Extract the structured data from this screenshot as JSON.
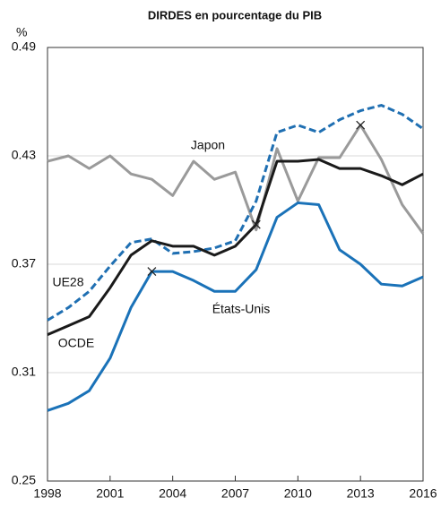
{
  "chart_data": {
    "type": "line",
    "title": "DIRDES en pourcentage du PIB",
    "y_unit": "%",
    "x": [
      1998,
      1999,
      2000,
      2001,
      2002,
      2003,
      2004,
      2005,
      2006,
      2007,
      2008,
      2009,
      2010,
      2011,
      2012,
      2013,
      2014,
      2015,
      2016
    ],
    "xlim": [
      1998,
      2016
    ],
    "xticks": [
      1998,
      2001,
      2004,
      2007,
      2010,
      2013,
      2016
    ],
    "ylim": [
      0.25,
      0.49
    ],
    "yticks": [
      0.25,
      0.31,
      0.37,
      0.43,
      0.49
    ],
    "grid": true,
    "series": [
      {
        "name": "Japon",
        "color": "#9a9a9a",
        "dashed": false,
        "break_at": 2013,
        "values": [
          0.427,
          0.43,
          0.423,
          0.43,
          0.42,
          0.417,
          0.408,
          0.427,
          0.417,
          0.421,
          0.389,
          0.434,
          0.405,
          0.429,
          0.429,
          0.447,
          0.428,
          0.403,
          0.387
        ]
      },
      {
        "name": "UE28",
        "color": "#1f6fb2",
        "dashed": true,
        "values": [
          0.339,
          0.346,
          0.355,
          0.369,
          0.382,
          0.384,
          0.376,
          0.377,
          0.379,
          0.383,
          0.405,
          0.443,
          0.447,
          0.443,
          0.45,
          0.455,
          0.458,
          0.453,
          0.445
        ]
      },
      {
        "name": "OCDE",
        "color": "#1a1a1a",
        "dashed": false,
        "break_at": 2008,
        "values": [
          0.331,
          0.336,
          0.341,
          0.357,
          0.375,
          0.383,
          0.38,
          0.38,
          0.375,
          0.38,
          0.392,
          0.427,
          0.427,
          0.428,
          0.423,
          0.423,
          0.419,
          0.414,
          0.42
        ]
      },
      {
        "name": "États-Unis",
        "color": "#1a72b8",
        "dashed": false,
        "break_at": 2003,
        "values": [
          0.289,
          0.293,
          0.3,
          0.318,
          0.346,
          0.366,
          0.366,
          0.361,
          0.355,
          0.355,
          0.367,
          0.396,
          0.404,
          0.403,
          0.378,
          0.37,
          0.359,
          0.358,
          0.363
        ]
      }
    ]
  }
}
